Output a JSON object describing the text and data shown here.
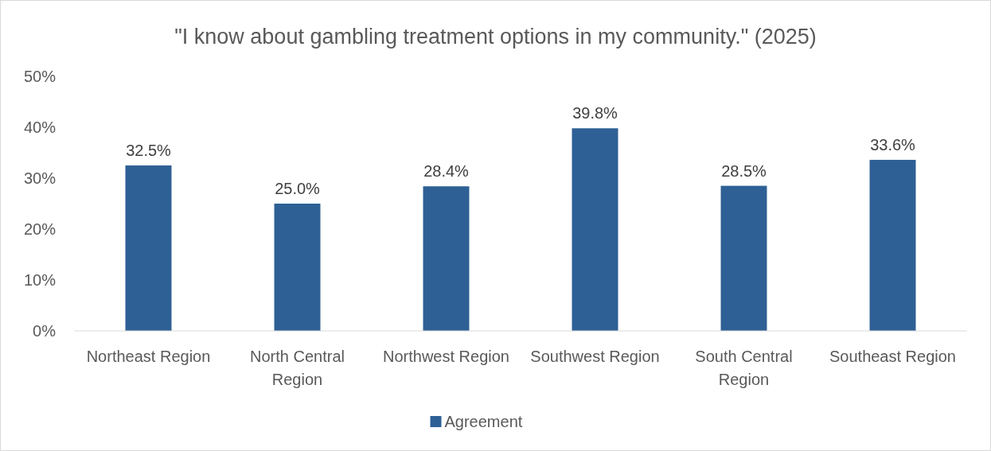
{
  "chart_data": {
    "type": "bar",
    "title": "\"I know about gambling treatment options in my community.\" (2025)",
    "categories": [
      "Northeast Region",
      "North Central Region",
      "Northwest Region",
      "Southwest Region",
      "South Central Region",
      "Southeast Region"
    ],
    "series": [
      {
        "name": "Agreement",
        "color": "#2e6095",
        "values": [
          32.5,
          25.0,
          28.4,
          39.8,
          28.5,
          33.6
        ],
        "value_labels": [
          "32.5%",
          "25.0%",
          "28.4%",
          "39.8%",
          "28.5%",
          "33.6%"
        ]
      }
    ],
    "ylim": [
      0,
      50
    ],
    "yticks": [
      {
        "value": 0,
        "label": "0%"
      },
      {
        "value": 10,
        "label": "10%"
      },
      {
        "value": 20,
        "label": "20%"
      },
      {
        "value": 30,
        "label": "30%"
      },
      {
        "value": 40,
        "label": "40%"
      },
      {
        "value": 50,
        "label": "50%"
      }
    ],
    "grid": false,
    "legend": "bottom"
  }
}
